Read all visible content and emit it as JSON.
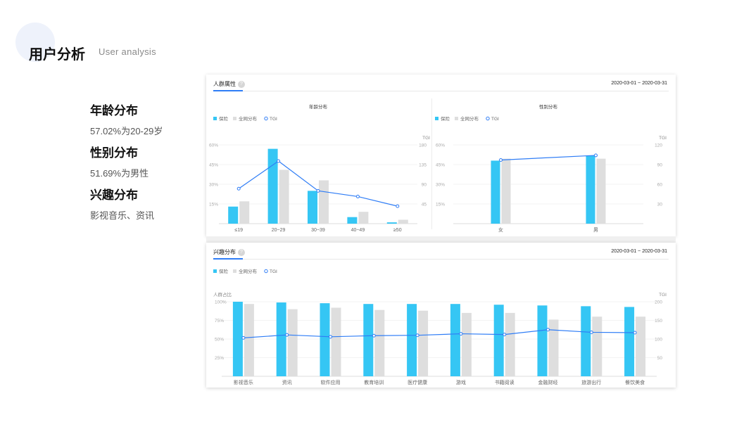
{
  "page": {
    "title": "用户分析",
    "subtitle": "User analysis"
  },
  "summary": [
    {
      "title": "年龄分布",
      "desc": "57.02%为20-29岁"
    },
    {
      "title": "性别分布",
      "desc": "51.69%为男性"
    },
    {
      "title": "兴趣分布",
      "desc": "影视音乐、资讯"
    }
  ],
  "top_card": {
    "title": "人群属性",
    "help_icon": "question-circle-icon",
    "date_range": "2020-03-01 ~ 2020-03-31"
  },
  "bottom_card": {
    "title": "兴趣分布",
    "help_icon": "question-circle-icon",
    "date_range": "2020-03-01 ~ 2020-03-31"
  },
  "colors": {
    "insurance": "#35c6f4",
    "network": "#dedede",
    "tgi": "#2f7df6"
  },
  "legend": {
    "insurance": "保险",
    "network": "全网分布",
    "tgi": "TGI"
  },
  "chart_data": [
    {
      "id": "age",
      "type": "bar",
      "title": "年龄分布",
      "categories": [
        "≤19",
        "20~29",
        "30~39",
        "40~49",
        "≥50"
      ],
      "series": [
        {
          "name": "保险",
          "kind": "bar",
          "axis": "left",
          "values": [
            13,
            57,
            25,
            5,
            1
          ]
        },
        {
          "name": "全网分布",
          "kind": "bar",
          "axis": "left",
          "values": [
            17,
            41,
            33,
            9,
            3
          ]
        },
        {
          "name": "TGI",
          "kind": "line",
          "axis": "right",
          "values": [
            80,
            143,
            75,
            62,
            40
          ]
        }
      ],
      "left_axis": {
        "ticks": [
          "15%",
          "30%",
          "45%",
          "60%"
        ],
        "ylim": [
          0,
          60
        ]
      },
      "right_axis": {
        "label": "TGI",
        "ticks": [
          "45",
          "90",
          "135",
          "180"
        ],
        "ylim": [
          0,
          180
        ]
      },
      "legend_position": "top-left"
    },
    {
      "id": "gender",
      "type": "bar",
      "title": "性别分布",
      "categories": [
        "女",
        "男"
      ],
      "series": [
        {
          "name": "保险",
          "kind": "bar",
          "axis": "left",
          "values": [
            48,
            52
          ]
        },
        {
          "name": "全网分布",
          "kind": "bar",
          "axis": "left",
          "values": [
            49.5,
            49.5
          ]
        },
        {
          "name": "TGI",
          "kind": "line",
          "axis": "right",
          "values": [
            97,
            104
          ]
        }
      ],
      "left_axis": {
        "ticks": [
          "15%",
          "30%",
          "45%",
          "60%"
        ],
        "ylim": [
          0,
          60
        ]
      },
      "right_axis": {
        "label": "TGI",
        "ticks": [
          "30",
          "60",
          "90",
          "120"
        ],
        "ylim": [
          0,
          120
        ]
      },
      "legend_position": "top-left"
    },
    {
      "id": "interest",
      "type": "bar",
      "categories": [
        "影视音乐",
        "资讯",
        "软件应用",
        "教育培训",
        "医疗健康",
        "游戏",
        "书籍阅读",
        "金融财经",
        "旅游出行",
        "餐饮美食"
      ],
      "series": [
        {
          "name": "保险",
          "kind": "bar",
          "axis": "left",
          "values": [
            100,
            99,
            98,
            97,
            97,
            97,
            96,
            95,
            94,
            93
          ]
        },
        {
          "name": "全网分布",
          "kind": "bar",
          "axis": "left",
          "values": [
            97,
            90,
            92,
            89,
            88,
            85,
            85,
            76,
            80,
            80
          ]
        },
        {
          "name": "TGI",
          "kind": "line",
          "axis": "right",
          "values": [
            103,
            111,
            106,
            109,
            110,
            114,
            112,
            125,
            118,
            117
          ]
        }
      ],
      "left_axis": {
        "label": "人群占比",
        "ticks": [
          "25%",
          "50%",
          "75%",
          "100%"
        ],
        "ylim": [
          0,
          100
        ]
      },
      "right_axis": {
        "label": "TGI",
        "ticks": [
          "50",
          "100",
          "150",
          "200"
        ],
        "ylim": [
          0,
          200
        ]
      },
      "legend_position": "top-left"
    }
  ]
}
